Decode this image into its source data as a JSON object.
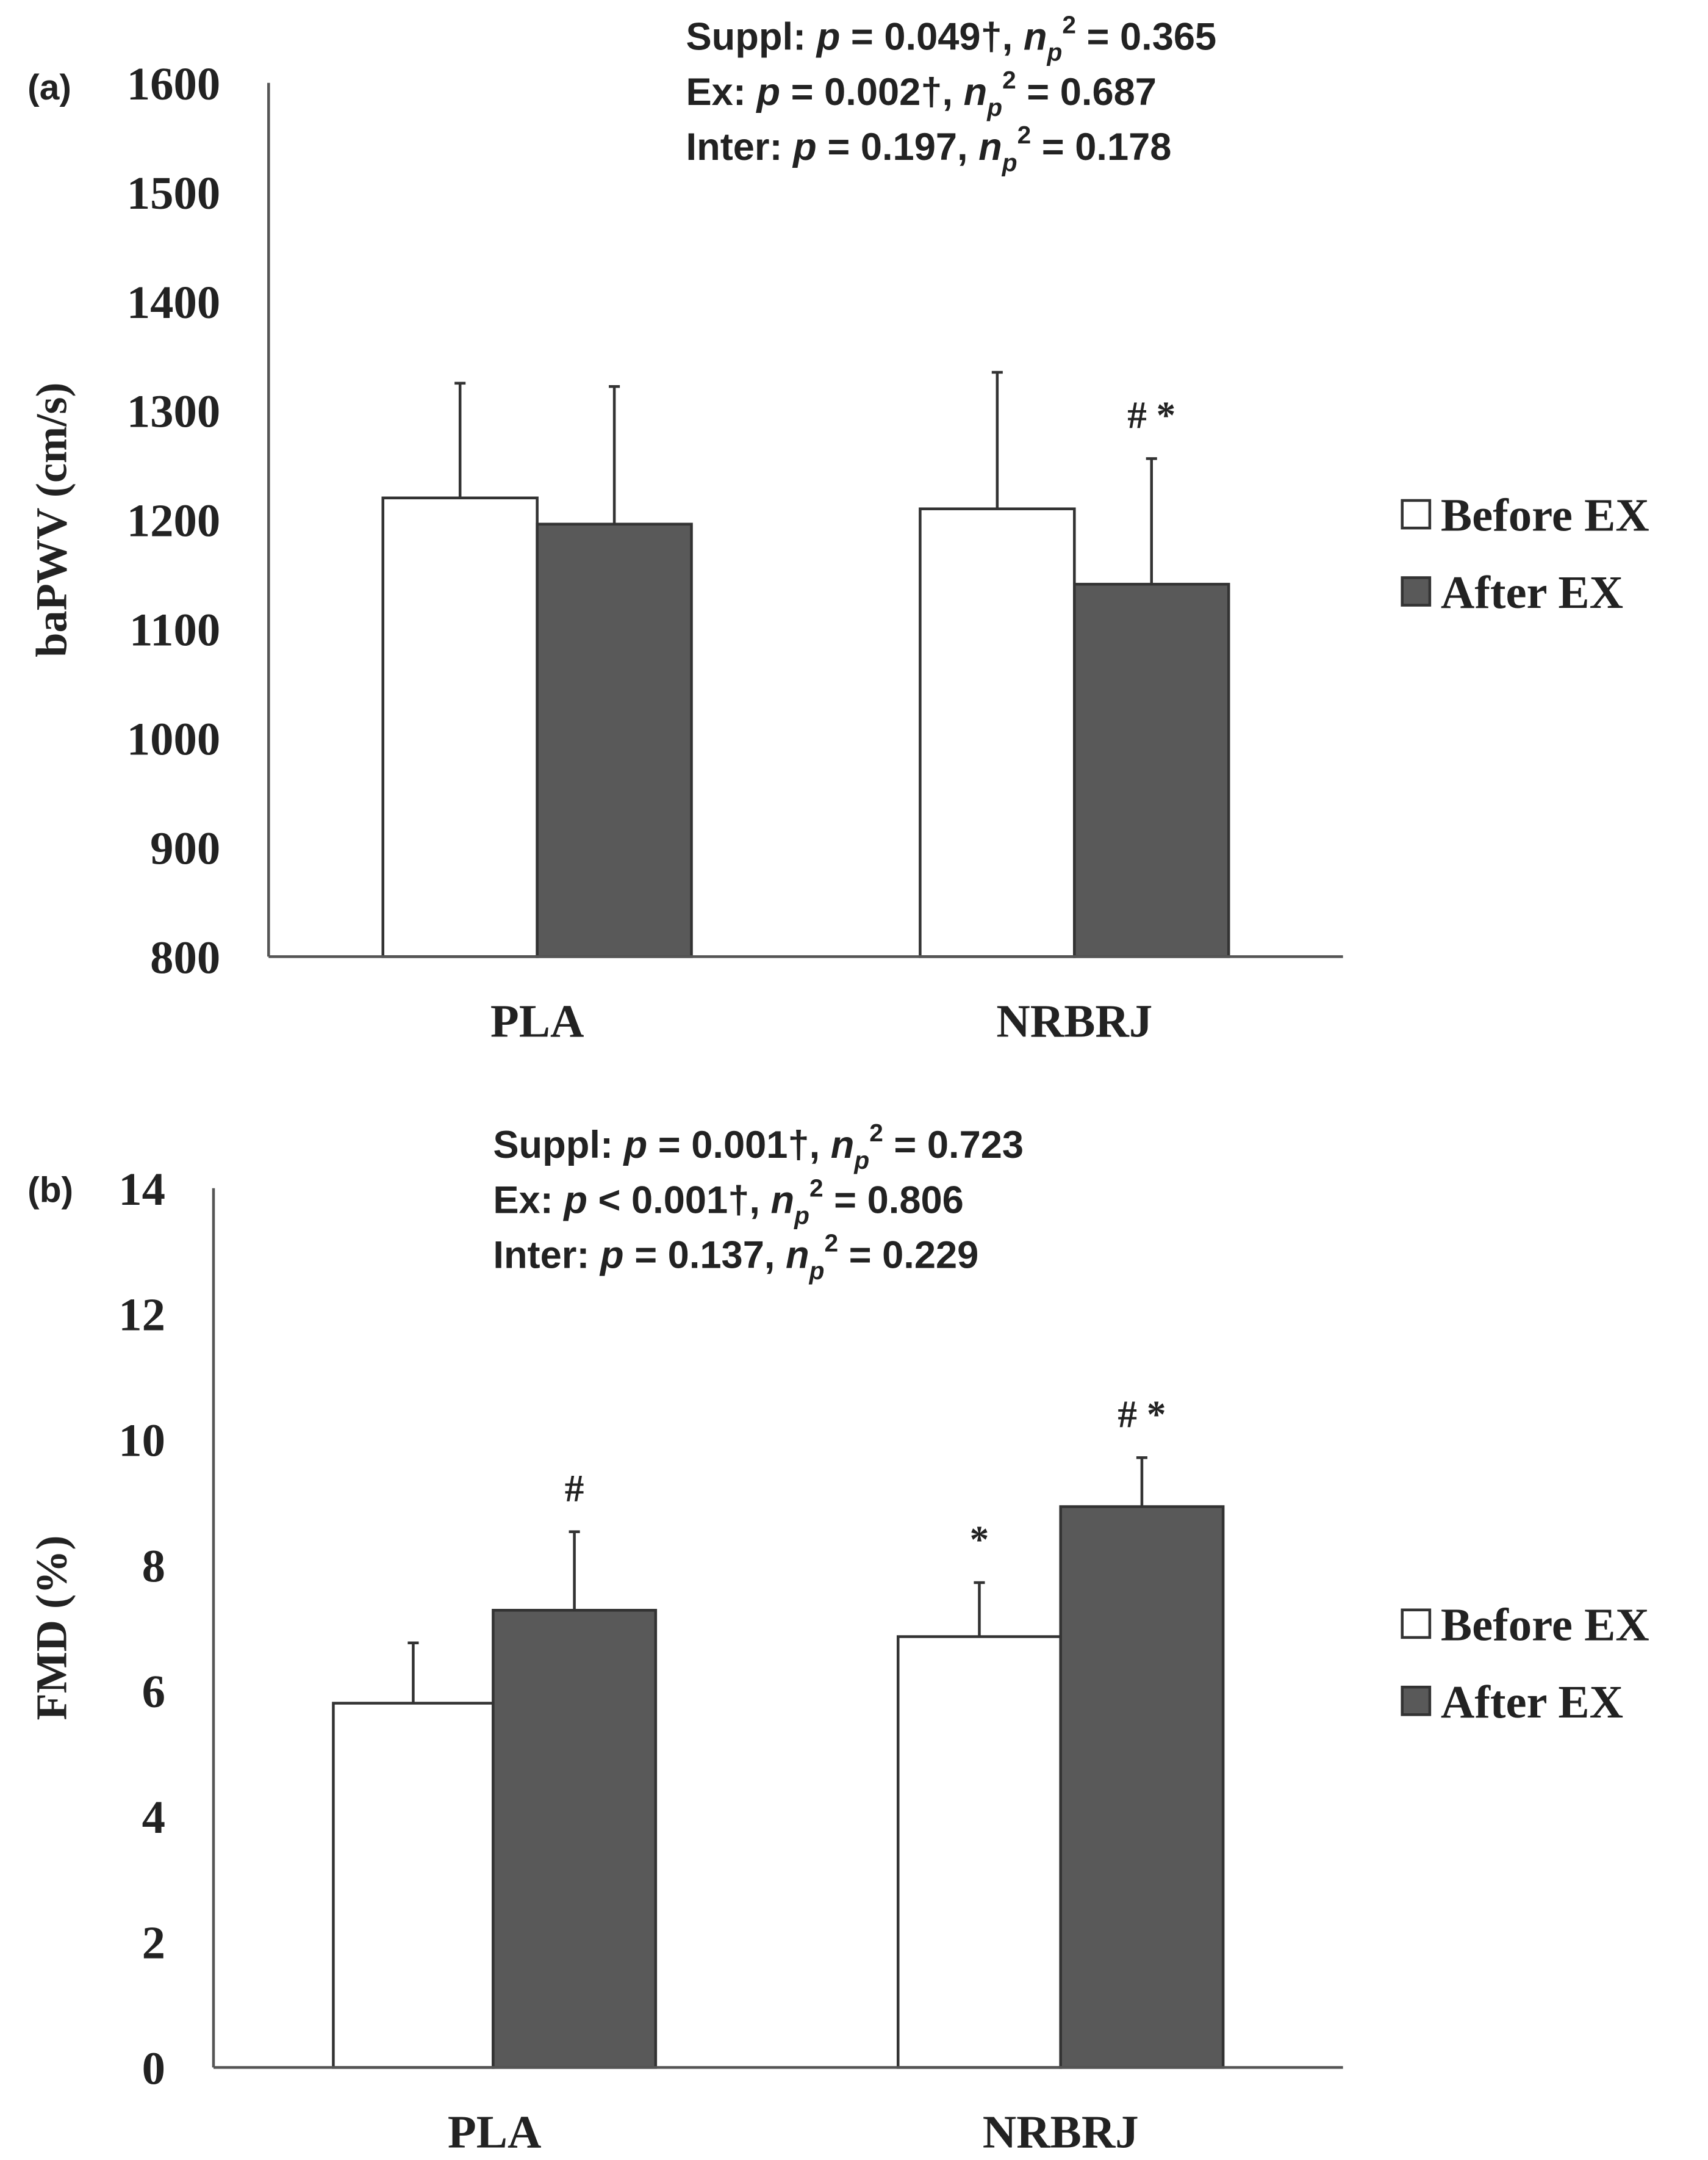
{
  "colors": {
    "before": "#ffffff",
    "after": "#595959",
    "axis": "#555555",
    "text": "#222222"
  },
  "chart_data": [
    {
      "type": "bar",
      "panel_label": "(a)",
      "ylabel": "baPWV (cm/s)",
      "ylim": [
        800,
        1600
      ],
      "yticks": [
        800,
        900,
        1000,
        1100,
        1200,
        1300,
        1400,
        1500,
        1600
      ],
      "categories": [
        "PLA",
        "NRBRJ"
      ],
      "series": [
        {
          "name": "Before EX",
          "values": [
            1220,
            1210
          ],
          "errors": [
            105,
            125
          ],
          "markers": [
            "",
            ""
          ]
        },
        {
          "name": "After EX",
          "values": [
            1196,
            1141
          ],
          "errors": [
            126,
            115
          ],
          "markers": [
            "",
            "# *"
          ]
        }
      ],
      "legend": [
        "Before EX",
        "After EX"
      ],
      "legend_position": "right",
      "stats": [
        {
          "label": "Suppl:",
          "p": "= 0.049†,",
          "np2": "= 0.365"
        },
        {
          "label": "Ex:",
          "p": "= 0.002†,",
          "np2": "= 0.687"
        },
        {
          "label": "Inter:",
          "p": "= 0.197,",
          "np2": "= 0.178"
        }
      ]
    },
    {
      "type": "bar",
      "panel_label": "(b)",
      "ylabel": "FMD (%)",
      "ylim": [
        0,
        14
      ],
      "yticks": [
        0,
        2,
        4,
        6,
        8,
        10,
        12,
        14
      ],
      "categories": [
        "PLA",
        "NRBRJ"
      ],
      "series": [
        {
          "name": "Before EX",
          "values": [
            5.8,
            6.86
          ],
          "errors": [
            0.96,
            0.86
          ],
          "markers": [
            "",
            "*"
          ]
        },
        {
          "name": "After EX",
          "values": [
            7.28,
            8.93
          ],
          "errors": [
            1.25,
            0.78
          ],
          "markers": [
            "#",
            "# *"
          ]
        }
      ],
      "legend": [
        "Before EX",
        "After EX"
      ],
      "legend_position": "right",
      "stats": [
        {
          "label": "Suppl:",
          "p": "= 0.001†,",
          "np2": "= 0.723"
        },
        {
          "label": "Ex:",
          "p": "< 0.001†,",
          "np2": "= 0.806"
        },
        {
          "label": "Inter:",
          "p": "= 0.137,",
          "np2": "= 0.229"
        }
      ]
    }
  ]
}
